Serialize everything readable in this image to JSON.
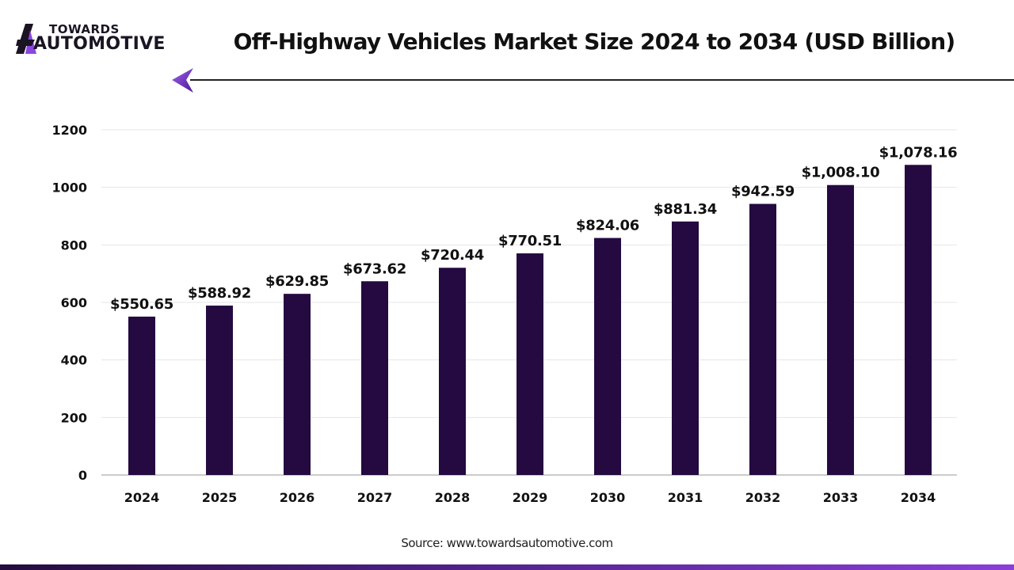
{
  "logo": {
    "top": "TOWARDS",
    "bottom": "AUTOMOTIVE",
    "colors": {
      "dark": "#1a1423",
      "accent": "#8b45e0"
    }
  },
  "header": {
    "title": "Off-Highway Vehicles Market Size 2024 to 2034 (USD Billion)"
  },
  "chart_data": {
    "type": "bar",
    "title": "Off-Highway Vehicles Market Size 2024 to 2034 (USD Billion)",
    "xlabel": "",
    "ylabel": "",
    "categories": [
      "2024",
      "2025",
      "2026",
      "2027",
      "2028",
      "2029",
      "2030",
      "2031",
      "2032",
      "2033",
      "2034"
    ],
    "values": [
      550.65,
      588.92,
      629.85,
      673.62,
      720.44,
      770.51,
      824.06,
      881.34,
      942.59,
      1008.1,
      1078.16
    ],
    "data_labels": [
      "$550.65",
      "$588.92",
      "$629.85",
      "$673.62",
      "$720.44",
      "$770.51",
      "$824.06",
      "$881.34",
      "$942.59",
      "$1,008.10",
      "$1,078.16"
    ],
    "ylim": [
      0,
      1200
    ],
    "yticks": [
      "0",
      "200",
      "400",
      "600",
      "800",
      "1000",
      "1200"
    ],
    "grid": true,
    "bar_color": "#240a40"
  },
  "footer": {
    "source": "Source: www.towardsautomotive.com"
  }
}
